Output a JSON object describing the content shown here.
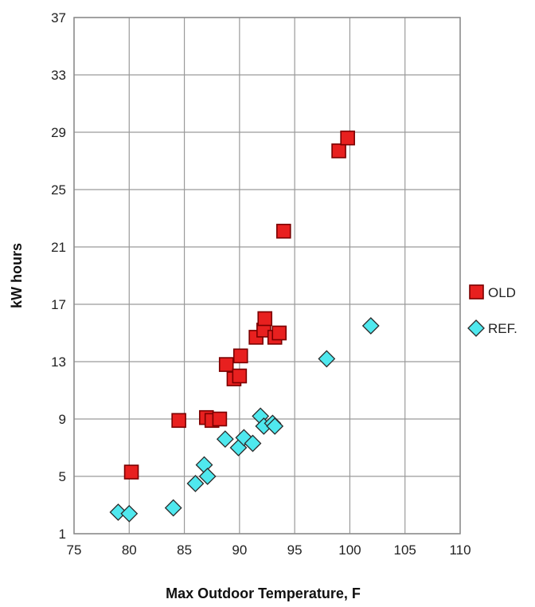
{
  "chart_data": {
    "type": "scatter",
    "title": "",
    "xlabel": "Max Outdoor Temperature, F",
    "ylabel": "kW hours",
    "xlim": [
      75,
      110
    ],
    "ylim": [
      1,
      37
    ],
    "xticks": [
      75,
      80,
      85,
      90,
      95,
      100,
      105,
      110
    ],
    "yticks": [
      1,
      5,
      9,
      13,
      17,
      21,
      25,
      29,
      33,
      37
    ],
    "grid": true,
    "legend_position": "right",
    "series": [
      {
        "name": "OLD",
        "marker": "square",
        "color": "#e8201f",
        "edge_color": "#7a0000",
        "points": [
          [
            80.2,
            5.3
          ],
          [
            84.5,
            8.9
          ],
          [
            87.0,
            9.1
          ],
          [
            87.5,
            8.9
          ],
          [
            88.2,
            9.0
          ],
          [
            88.8,
            12.8
          ],
          [
            89.5,
            11.8
          ],
          [
            90.0,
            12.0
          ],
          [
            90.1,
            13.4
          ],
          [
            91.5,
            14.7
          ],
          [
            92.2,
            15.2
          ],
          [
            92.3,
            16.0
          ],
          [
            93.2,
            14.7
          ],
          [
            93.6,
            15.0
          ],
          [
            94.0,
            22.1
          ],
          [
            99.0,
            27.7
          ],
          [
            99.8,
            28.6
          ]
        ]
      },
      {
        "name": "REF.",
        "marker": "diamond",
        "color": "#4fe8ee",
        "edge_color": "#2a2a2a",
        "points": [
          [
            79.0,
            2.5
          ],
          [
            80.0,
            2.4
          ],
          [
            84.0,
            2.8
          ],
          [
            86.0,
            4.5
          ],
          [
            86.8,
            5.8
          ],
          [
            87.1,
            5.0
          ],
          [
            88.7,
            7.6
          ],
          [
            89.9,
            7.0
          ],
          [
            90.4,
            7.7
          ],
          [
            91.2,
            7.3
          ],
          [
            91.9,
            9.2
          ],
          [
            92.2,
            8.5
          ],
          [
            93.0,
            8.7
          ],
          [
            93.2,
            8.5
          ],
          [
            97.9,
            13.2
          ],
          [
            101.9,
            15.5
          ]
        ]
      }
    ]
  }
}
